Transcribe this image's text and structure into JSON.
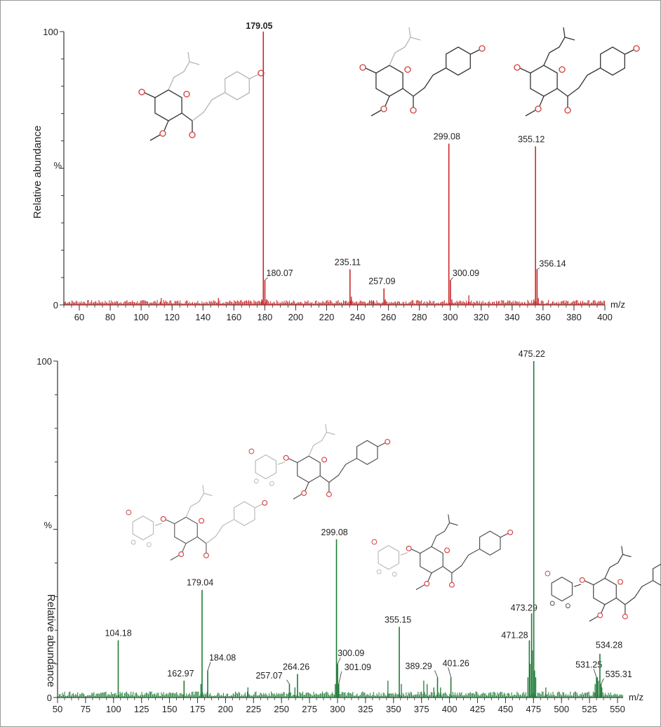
{
  "chart_data": [
    {
      "type": "bar",
      "color": "#c8282a",
      "ylabel": "Relative abundance",
      "ypercent": "%",
      "xunit": "m/z",
      "xlim": [
        50,
        400
      ],
      "ylim": [
        0,
        100
      ],
      "xticks": [
        60,
        80,
        100,
        120,
        140,
        160,
        180,
        200,
        220,
        240,
        260,
        280,
        300,
        320,
        340,
        360,
        380,
        400
      ],
      "yticks": [
        "0",
        "100"
      ],
      "peaks": [
        {
          "x": 179.05,
          "y": 100,
          "label": "179.05",
          "bold": true
        },
        {
          "x": 180.07,
          "y": 9,
          "label": "180.07"
        },
        {
          "x": 235.11,
          "y": 13,
          "label": "235.11"
        },
        {
          "x": 257.09,
          "y": 6,
          "label": "257.09"
        },
        {
          "x": 299.08,
          "y": 59,
          "label": "299.08"
        },
        {
          "x": 300.09,
          "y": 9,
          "label": "300.09"
        },
        {
          "x": 355.12,
          "y": 58,
          "label": "355.12"
        },
        {
          "x": 356.14,
          "y": 13,
          "label": "356.14"
        }
      ],
      "minor_peaks": [
        {
          "x": 113,
          "y": 2.5
        },
        {
          "x": 150,
          "y": 2.5
        },
        {
          "x": 178,
          "y": 2
        },
        {
          "x": 181,
          "y": 2
        },
        {
          "x": 236,
          "y": 3
        },
        {
          "x": 250,
          "y": 1.5
        },
        {
          "x": 258,
          "y": 2
        },
        {
          "x": 301,
          "y": 2
        },
        {
          "x": 312,
          "y": 3.5
        },
        {
          "x": 354,
          "y": 2
        },
        {
          "x": 357,
          "y": 2.5
        }
      ]
    },
    {
      "type": "bar",
      "color": "#1f7a36",
      "ylabel": "Relative abundance",
      "ypercent": "%",
      "xunit": "m/z",
      "xlim": [
        50,
        555
      ],
      "ylim": [
        0,
        100
      ],
      "xticks": [
        50,
        75,
        100,
        125,
        150,
        175,
        200,
        225,
        250,
        275,
        300,
        325,
        350,
        375,
        400,
        425,
        450,
        475,
        500,
        525,
        550
      ],
      "yticks": [
        "0",
        "100"
      ],
      "peaks": [
        {
          "x": 104.18,
          "y": 17,
          "label": "104.18"
        },
        {
          "x": 162.97,
          "y": 5,
          "label": "162.97"
        },
        {
          "x": 179.04,
          "y": 32,
          "label": "179.04"
        },
        {
          "x": 184.08,
          "y": 8,
          "label": "184.08"
        },
        {
          "x": 257.07,
          "y": 4,
          "label": "257.07"
        },
        {
          "x": 264.26,
          "y": 7,
          "label": "264.26"
        },
        {
          "x": 299.08,
          "y": 47,
          "label": "299.08"
        },
        {
          "x": 300.09,
          "y": 10,
          "label": "300.09"
        },
        {
          "x": 301.09,
          "y": 4,
          "label": "301.09"
        },
        {
          "x": 355.15,
          "y": 21,
          "label": "355.15"
        },
        {
          "x": 389.29,
          "y": 6,
          "label": "389.29"
        },
        {
          "x": 401.26,
          "y": 6,
          "label": "401.26"
        },
        {
          "x": 471.28,
          "y": 17,
          "label": "471.28"
        },
        {
          "x": 473.29,
          "y": 25,
          "label": "473.29"
        },
        {
          "x": 475.22,
          "y": 100,
          "label": "475.22"
        },
        {
          "x": 531.25,
          "y": 6,
          "label": "531.25"
        },
        {
          "x": 534.28,
          "y": 13,
          "label": "534.28"
        },
        {
          "x": 535.31,
          "y": 4,
          "label": "535.31"
        }
      ],
      "minor_peaks": [
        {
          "x": 178,
          "y": 4
        },
        {
          "x": 220,
          "y": 3
        },
        {
          "x": 262,
          "y": 3
        },
        {
          "x": 298,
          "y": 4
        },
        {
          "x": 345,
          "y": 5
        },
        {
          "x": 357,
          "y": 4
        },
        {
          "x": 377,
          "y": 5
        },
        {
          "x": 380,
          "y": 4
        },
        {
          "x": 386,
          "y": 3
        },
        {
          "x": 392,
          "y": 3
        },
        {
          "x": 470,
          "y": 6
        },
        {
          "x": 472,
          "y": 10
        },
        {
          "x": 474,
          "y": 14
        },
        {
          "x": 476,
          "y": 8
        },
        {
          "x": 477,
          "y": 6
        },
        {
          "x": 486,
          "y": 3
        },
        {
          "x": 530,
          "y": 4
        },
        {
          "x": 532,
          "y": 6
        },
        {
          "x": 533,
          "y": 5
        },
        {
          "x": 536,
          "y": 3
        }
      ]
    }
  ]
}
